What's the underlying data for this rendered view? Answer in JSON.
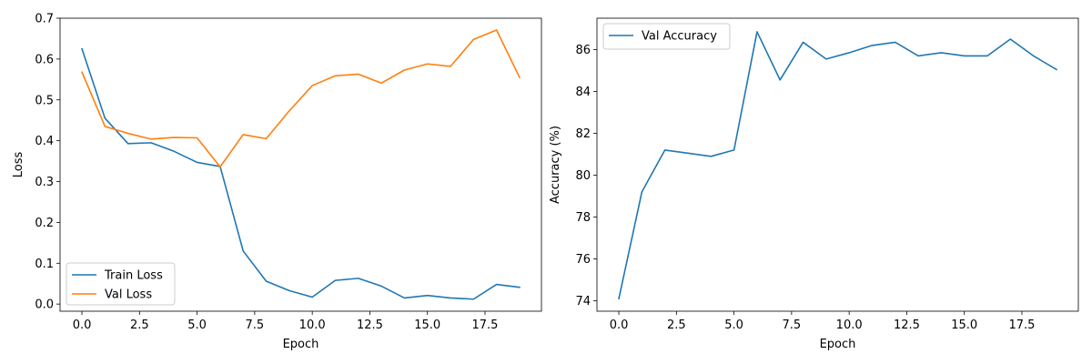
{
  "chart_data": [
    {
      "type": "line",
      "xlabel": "Epoch",
      "ylabel": "Loss",
      "xlim": [
        -0.95,
        19.95
      ],
      "ylim": [
        -0.0175,
        0.7
      ],
      "xticks": [
        0.0,
        2.5,
        5.0,
        7.5,
        10.0,
        12.5,
        15.0,
        17.5
      ],
      "xtick_labels": [
        "0.0",
        "2.5",
        "5.0",
        "7.5",
        "10.0",
        "12.5",
        "15.0",
        "17.5"
      ],
      "yticks": [
        0.0,
        0.1,
        0.2,
        0.3,
        0.4,
        0.5,
        0.6,
        0.7
      ],
      "ytick_labels": [
        "0.0",
        "0.1",
        "0.2",
        "0.3",
        "0.4",
        "0.5",
        "0.6",
        "0.7"
      ],
      "grid": false,
      "legend": "lower-left",
      "x": [
        0,
        1,
        2,
        3,
        4,
        5,
        6,
        7,
        8,
        9,
        10,
        11,
        12,
        13,
        14,
        15,
        16,
        17,
        18,
        19
      ],
      "series": [
        {
          "name": "Train Loss",
          "color": "#1f77b4",
          "values": [
            0.625,
            0.455,
            0.393,
            0.395,
            0.374,
            0.347,
            0.337,
            0.13,
            0.056,
            0.033,
            0.017,
            0.058,
            0.063,
            0.044,
            0.015,
            0.021,
            0.015,
            0.012,
            0.048,
            0.041
          ]
        },
        {
          "name": "Val Loss",
          "color": "#ff7f0e",
          "values": [
            0.568,
            0.435,
            0.418,
            0.404,
            0.408,
            0.407,
            0.336,
            0.415,
            0.405,
            0.473,
            0.535,
            0.559,
            0.563,
            0.541,
            0.573,
            0.588,
            0.582,
            0.648,
            0.671,
            0.555
          ]
        }
      ]
    },
    {
      "type": "line",
      "xlabel": "Epoch",
      "ylabel": "Accuracy (%)",
      "xlim": [
        -0.95,
        19.95
      ],
      "ylim": [
        73.5,
        87.5
      ],
      "xticks": [
        0.0,
        2.5,
        5.0,
        7.5,
        10.0,
        12.5,
        15.0,
        17.5
      ],
      "xtick_labels": [
        "0.0",
        "2.5",
        "5.0",
        "7.5",
        "10.0",
        "12.5",
        "15.0",
        "17.5"
      ],
      "yticks": [
        74,
        76,
        78,
        80,
        82,
        84,
        86
      ],
      "ytick_labels": [
        "74",
        "76",
        "78",
        "80",
        "82",
        "84",
        "86"
      ],
      "grid": false,
      "legend": "upper-left",
      "x": [
        0,
        1,
        2,
        3,
        4,
        5,
        6,
        7,
        8,
        9,
        10,
        11,
        12,
        13,
        14,
        15,
        16,
        17,
        18,
        19
      ],
      "series": [
        {
          "name": "Val Accuracy",
          "color": "#1f77b4",
          "values": [
            74.1,
            79.2,
            81.2,
            81.05,
            80.9,
            81.2,
            86.85,
            84.55,
            86.35,
            85.55,
            85.85,
            86.2,
            86.35,
            85.7,
            85.85,
            85.7,
            85.7,
            86.5,
            85.7,
            85.05
          ]
        }
      ]
    }
  ]
}
